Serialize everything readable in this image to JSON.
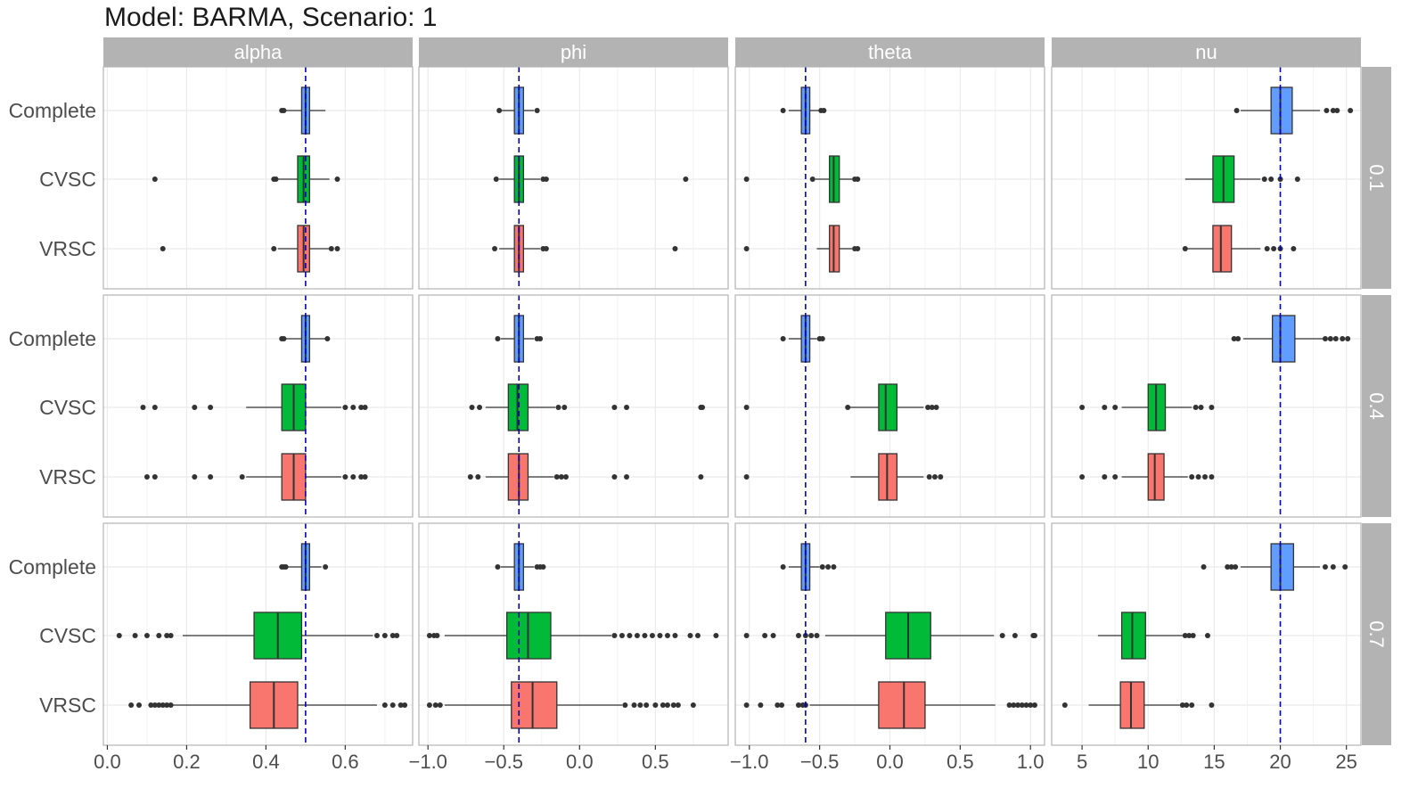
{
  "chart_data": {
    "type": "boxplot",
    "title": "Model: BARMA, Scenario: 1",
    "facet_columns": [
      "alpha",
      "phi",
      "theta",
      "nu"
    ],
    "facet_rows": [
      "0.1",
      "0.4",
      "0.7"
    ],
    "categories": [
      "Complete",
      "CVSC",
      "VRSC"
    ],
    "colors": {
      "Complete": "#619CFF",
      "CVSC": "#00BA38",
      "VRSC": "#F8766D"
    },
    "reference_line_color": "#0000CC",
    "axes": {
      "alpha": {
        "xlim": [
          -0.01,
          0.77
        ],
        "ticks": [
          0.0,
          0.2,
          0.4,
          0.6
        ],
        "tick_labels": [
          "0.0",
          "0.2",
          "0.4",
          "0.6"
        ],
        "true_value": 0.5
      },
      "phi": {
        "xlim": [
          -1.06,
          0.98
        ],
        "ticks": [
          -1.0,
          -0.5,
          0.0,
          0.5
        ],
        "tick_labels": [
          "−1.0",
          "−0.5",
          "0.0",
          "0.5"
        ],
        "true_value": -0.4
      },
      "theta": {
        "xlim": [
          -1.1,
          1.1
        ],
        "ticks": [
          -1.0,
          -0.5,
          0.0,
          0.5,
          1.0
        ],
        "tick_labels": [
          "−1.0",
          "−0.5",
          "0.0",
          "0.5",
          "1.0"
        ],
        "true_value": -0.6
      },
      "nu": {
        "xlim": [
          2.7,
          26.1
        ],
        "ticks": [
          5,
          10,
          15,
          20,
          25
        ],
        "tick_labels": [
          "5",
          "10",
          "15",
          "20",
          "25"
        ],
        "true_value": 20
      }
    },
    "panels": [
      {
        "row": "0.1",
        "col": "alpha",
        "boxes": [
          {
            "category": "Complete",
            "q1": 0.49,
            "median": 0.5,
            "q3": 0.51,
            "wlo": 0.45,
            "whi": 0.55,
            "outliers": [
              0.44,
              0.445
            ]
          },
          {
            "category": "CVSC",
            "q1": 0.48,
            "median": 0.495,
            "q3": 0.51,
            "wlo": 0.43,
            "whi": 0.56,
            "outliers": [
              0.12,
              0.42,
              0.425,
              0.58
            ]
          },
          {
            "category": "VRSC",
            "q1": 0.48,
            "median": 0.495,
            "q3": 0.51,
            "wlo": 0.43,
            "whi": 0.56,
            "outliers": [
              0.14,
              0.42,
              0.565,
              0.58
            ]
          }
        ]
      },
      {
        "row": "0.1",
        "col": "phi",
        "boxes": [
          {
            "category": "Complete",
            "q1": -0.43,
            "median": -0.4,
            "q3": -0.37,
            "wlo": -0.52,
            "whi": -0.3,
            "outliers": [
              -0.53,
              -0.28
            ]
          },
          {
            "category": "CVSC",
            "q1": -0.43,
            "median": -0.4,
            "q3": -0.37,
            "wlo": -0.53,
            "whi": -0.26,
            "outliers": [
              -0.55,
              -0.24,
              -0.22,
              0.7
            ]
          },
          {
            "category": "VRSC",
            "q1": -0.43,
            "median": -0.4,
            "q3": -0.37,
            "wlo": -0.53,
            "whi": -0.26,
            "outliers": [
              -0.56,
              -0.24,
              -0.22,
              0.63
            ]
          }
        ]
      },
      {
        "row": "0.1",
        "col": "theta",
        "boxes": [
          {
            "category": "Complete",
            "q1": -0.63,
            "median": -0.6,
            "q3": -0.57,
            "wlo": -0.72,
            "whi": -0.5,
            "outliers": [
              -0.76,
              -0.49,
              -0.47
            ]
          },
          {
            "category": "CVSC",
            "q1": -0.43,
            "median": -0.4,
            "q3": -0.36,
            "wlo": -0.53,
            "whi": -0.27,
            "outliers": [
              -1.02,
              -0.55,
              -0.25,
              -0.23
            ]
          },
          {
            "category": "VRSC",
            "q1": -0.43,
            "median": -0.4,
            "q3": -0.36,
            "wlo": -0.52,
            "whi": -0.27,
            "outliers": [
              -1.02,
              -0.25,
              -0.23
            ]
          }
        ]
      },
      {
        "row": "0.1",
        "col": "nu",
        "boxes": [
          {
            "category": "Complete",
            "q1": 19.3,
            "median": 20.0,
            "q3": 20.9,
            "wlo": 17.0,
            "whi": 23.0,
            "outliers": [
              16.7,
              23.5,
              24.0,
              24.3,
              25.3
            ]
          },
          {
            "category": "CVSC",
            "q1": 14.9,
            "median": 15.7,
            "q3": 16.5,
            "wlo": 12.8,
            "whi": 18.5,
            "outliers": [
              18.8,
              19.3,
              20.0,
              21.3
            ]
          },
          {
            "category": "VRSC",
            "q1": 14.9,
            "median": 15.5,
            "q3": 16.3,
            "wlo": 12.8,
            "whi": 18.5,
            "outliers": [
              12.8,
              19.0,
              19.5,
              20.0,
              21.0
            ]
          }
        ]
      },
      {
        "row": "0.4",
        "col": "alpha",
        "boxes": [
          {
            "category": "Complete",
            "q1": 0.49,
            "median": 0.5,
            "q3": 0.51,
            "wlo": 0.45,
            "whi": 0.55,
            "outliers": [
              0.44,
              0.445,
              0.555
            ]
          },
          {
            "category": "CVSC",
            "q1": 0.44,
            "median": 0.47,
            "q3": 0.5,
            "wlo": 0.35,
            "whi": 0.59,
            "outliers": [
              0.09,
              0.12,
              0.22,
              0.26,
              0.6,
              0.62,
              0.64,
              0.65
            ]
          },
          {
            "category": "VRSC",
            "q1": 0.44,
            "median": 0.47,
            "q3": 0.5,
            "wlo": 0.35,
            "whi": 0.59,
            "outliers": [
              0.1,
              0.12,
              0.22,
              0.26,
              0.34,
              0.6,
              0.62,
              0.64,
              0.65
            ]
          }
        ]
      },
      {
        "row": "0.4",
        "col": "phi",
        "boxes": [
          {
            "category": "Complete",
            "q1": -0.43,
            "median": -0.4,
            "q3": -0.37,
            "wlo": -0.52,
            "whi": -0.3,
            "outliers": [
              -0.54,
              -0.28,
              -0.26
            ]
          },
          {
            "category": "CVSC",
            "q1": -0.47,
            "median": -0.41,
            "q3": -0.34,
            "wlo": -0.62,
            "whi": -0.16,
            "outliers": [
              -0.71,
              -0.66,
              -0.14,
              -0.1,
              0.23,
              0.31,
              0.8,
              0.81
            ]
          },
          {
            "category": "VRSC",
            "q1": -0.47,
            "median": -0.4,
            "q3": -0.34,
            "wlo": -0.62,
            "whi": -0.17,
            "outliers": [
              -0.72,
              -0.67,
              -0.15,
              -0.12,
              -0.09,
              0.23,
              0.31,
              0.8
            ]
          }
        ]
      },
      {
        "row": "0.4",
        "col": "theta",
        "boxes": [
          {
            "category": "Complete",
            "q1": -0.63,
            "median": -0.6,
            "q3": -0.57,
            "wlo": -0.72,
            "whi": -0.52,
            "outliers": [
              -0.76,
              -0.5,
              -0.48
            ]
          },
          {
            "category": "CVSC",
            "q1": -0.08,
            "median": -0.03,
            "q3": 0.05,
            "wlo": -0.29,
            "whi": 0.24,
            "outliers": [
              -1.02,
              -0.3,
              0.27,
              0.3,
              0.33
            ]
          },
          {
            "category": "VRSC",
            "q1": -0.08,
            "median": -0.02,
            "q3": 0.05,
            "wlo": -0.28,
            "whi": 0.24,
            "outliers": [
              -1.02,
              0.28,
              0.32,
              0.36
            ]
          }
        ]
      },
      {
        "row": "0.4",
        "col": "nu",
        "boxes": [
          {
            "category": "Complete",
            "q1": 19.4,
            "median": 20.0,
            "q3": 21.1,
            "wlo": 17.2,
            "whi": 23.2,
            "outliers": [
              16.5,
              16.8,
              23.4,
              23.8,
              24.2,
              24.7,
              25.1
            ]
          },
          {
            "category": "CVSC",
            "q1": 10.0,
            "median": 10.6,
            "q3": 11.3,
            "wlo": 8.0,
            "whi": 13.3,
            "outliers": [
              5.0,
              6.7,
              7.5,
              13.6,
              14.0,
              14.8
            ]
          },
          {
            "category": "VRSC",
            "q1": 10.0,
            "median": 10.5,
            "q3": 11.2,
            "wlo": 8.0,
            "whi": 13.0,
            "outliers": [
              5.0,
              6.7,
              7.5,
              13.3,
              13.8,
              14.3,
              14.8
            ]
          }
        ]
      },
      {
        "row": "0.7",
        "col": "alpha",
        "boxes": [
          {
            "category": "Complete",
            "q1": 0.49,
            "median": 0.5,
            "q3": 0.51,
            "wlo": 0.45,
            "whi": 0.54,
            "outliers": [
              0.44,
              0.445,
              0.45,
              0.55
            ]
          },
          {
            "category": "CVSC",
            "q1": 0.37,
            "median": 0.43,
            "q3": 0.49,
            "wlo": 0.19,
            "whi": 0.67,
            "outliers": [
              0.03,
              0.07,
              0.1,
              0.13,
              0.15,
              0.16,
              0.68,
              0.7,
              0.72,
              0.73
            ]
          },
          {
            "category": "VRSC",
            "q1": 0.36,
            "median": 0.42,
            "q3": 0.48,
            "wlo": 0.16,
            "whi": 0.68,
            "outliers": [
              0.06,
              0.08,
              0.11,
              0.12,
              0.13,
              0.14,
              0.15,
              0.16,
              0.7,
              0.72,
              0.74,
              0.75
            ]
          }
        ]
      },
      {
        "row": "0.7",
        "col": "phi",
        "boxes": [
          {
            "category": "Complete",
            "q1": -0.43,
            "median": -0.4,
            "q3": -0.37,
            "wlo": -0.52,
            "whi": -0.3,
            "outliers": [
              -0.54,
              -0.28,
              -0.26,
              -0.24
            ]
          },
          {
            "category": "CVSC",
            "q1": -0.48,
            "median": -0.34,
            "q3": -0.19,
            "wlo": -0.89,
            "whi": 0.21,
            "outliers": [
              -0.99,
              -0.96,
              -0.94,
              0.23,
              0.28,
              0.33,
              0.38,
              0.43,
              0.48,
              0.53,
              0.58,
              0.63,
              0.73,
              0.78,
              0.9
            ]
          },
          {
            "category": "VRSC",
            "q1": -0.45,
            "median": -0.31,
            "q3": -0.15,
            "wlo": -0.89,
            "whi": 0.28,
            "outliers": [
              -0.99,
              -0.95,
              -0.92,
              0.3,
              0.36,
              0.4,
              0.44,
              0.5,
              0.55,
              0.58,
              0.62,
              0.65,
              0.75
            ]
          }
        ]
      },
      {
        "row": "0.7",
        "col": "theta",
        "boxes": [
          {
            "category": "Complete",
            "q1": -0.63,
            "median": -0.6,
            "q3": -0.57,
            "wlo": -0.72,
            "whi": -0.5,
            "outliers": [
              -0.76,
              -0.48,
              -0.44,
              -0.4
            ]
          },
          {
            "category": "CVSC",
            "q1": -0.03,
            "median": 0.13,
            "q3": 0.29,
            "wlo": -0.46,
            "whi": 0.74,
            "outliers": [
              -1.02,
              -0.89,
              -0.83,
              -0.65,
              -0.6,
              -0.56,
              -0.52,
              0.8,
              0.89,
              1.02,
              1.03
            ]
          },
          {
            "category": "VRSC",
            "q1": -0.08,
            "median": 0.1,
            "q3": 0.25,
            "wlo": -0.57,
            "whi": 0.75,
            "outliers": [
              -1.02,
              -0.92,
              -0.8,
              -0.77,
              -0.65,
              -0.62,
              -0.6,
              0.85,
              0.88,
              0.91,
              0.94,
              0.97,
              1.0,
              1.03
            ]
          }
        ]
      },
      {
        "row": "0.7",
        "col": "nu",
        "boxes": [
          {
            "category": "Complete",
            "q1": 19.3,
            "median": 20.0,
            "q3": 21.0,
            "wlo": 17.0,
            "whi": 23.0,
            "outliers": [
              14.2,
              16.0,
              16.3,
              16.6,
              23.4,
              24.0,
              24.9
            ]
          },
          {
            "category": "CVSC",
            "q1": 8.0,
            "median": 8.8,
            "q3": 9.8,
            "wlo": 6.2,
            "whi": 12.6,
            "outliers": [
              12.8,
              13.1,
              13.4,
              14.5
            ]
          },
          {
            "category": "VRSC",
            "q1": 7.9,
            "median": 8.7,
            "q3": 9.7,
            "wlo": 5.5,
            "whi": 12.4,
            "outliers": [
              3.7,
              12.6,
              12.9,
              13.3,
              14.8
            ]
          }
        ]
      }
    ]
  }
}
